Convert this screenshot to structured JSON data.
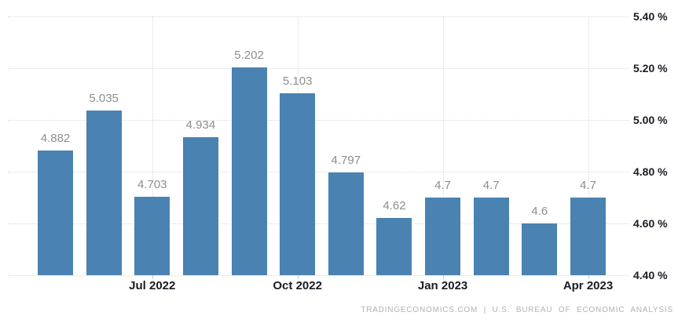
{
  "chart_data": {
    "type": "bar",
    "title": "",
    "values": [
      4.882,
      5.035,
      4.703,
      4.934,
      5.202,
      5.103,
      4.797,
      4.62,
      4.7,
      4.7,
      4.6,
      4.7
    ],
    "bar_labels": [
      "4.882",
      "5.035",
      "4.703",
      "4.934",
      "5.202",
      "5.103",
      "4.797",
      "4.62",
      "4.7",
      "4.7",
      "4.6",
      "4.7"
    ],
    "x_ticks": [
      {
        "label": "Jul 2022",
        "bar_index": 2
      },
      {
        "label": "Oct 2022",
        "bar_index": 5
      },
      {
        "label": "Jan 2023",
        "bar_index": 8
      },
      {
        "label": "Apr 2023",
        "bar_index": 11
      }
    ],
    "y_ticks": [
      "5.40 %",
      "5.20 %",
      "5.00 %",
      "4.80 %",
      "4.60 %",
      "4.40 %"
    ],
    "ylim": [
      4.4,
      5.4
    ],
    "grid": true,
    "legend": "none",
    "y_axis_side": "right",
    "bar_color": "#4a82b2",
    "value_label_color": "#8d8d8d",
    "axis_text_color": "#1b1b25",
    "gridline_color": "#d9d9d9"
  },
  "footer": {
    "attribution": "TRADINGECONOMICS.COM | U.S. BUREAU OF ECONOMIC ANALYSIS"
  }
}
